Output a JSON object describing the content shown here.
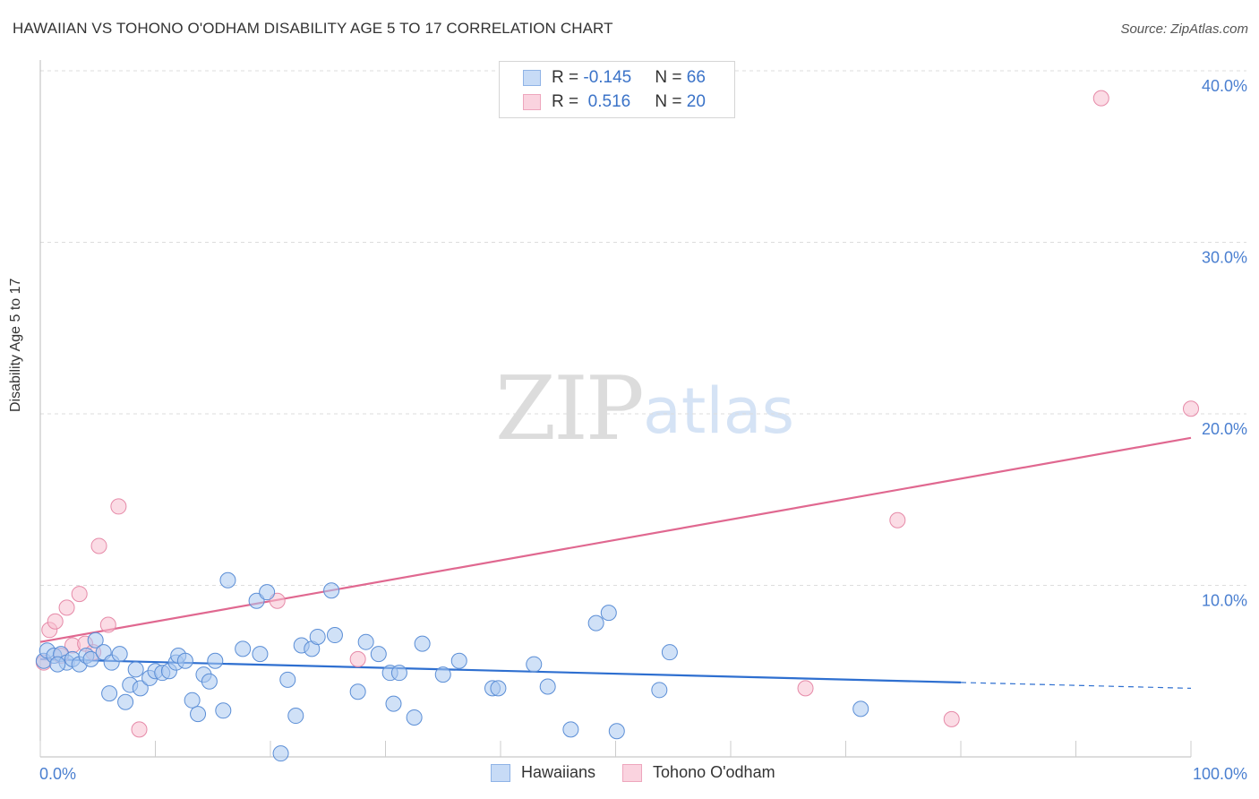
{
  "header": {
    "title": "HAWAIIAN VS TOHONO O'ODHAM DISABILITY AGE 5 TO 17 CORRELATION CHART",
    "source": "Source: ZipAtlas.com"
  },
  "watermark": {
    "zip": "ZIP",
    "atlas": "atlas"
  },
  "legend": {
    "rows": [
      {
        "r_label": "R = ",
        "r_value": "-0.145",
        "n_label": "N = ",
        "n_value": "66",
        "color": "#aac8f0"
      },
      {
        "r_label": "R = ",
        "r_value": " 0.516",
        "n_label": "N = ",
        "n_value": "20",
        "color": "#f5b8cb"
      }
    ]
  },
  "bottom_legend": {
    "series1": "Hawaiians",
    "series2": "Tohono O'odham"
  },
  "colors": {
    "blue_fill": "#aac8f0",
    "blue_stroke": "#5b8ed6",
    "blue_line": "#2e6fd0",
    "pink_fill": "#f7c0d0",
    "pink_stroke": "#e68aa8",
    "pink_line": "#e06890",
    "grid": "#dddddd",
    "tick_text": "#4a7fd0"
  },
  "chart_data": {
    "type": "scatter",
    "title": "HAWAIIAN VS TOHONO O'ODHAM DISABILITY AGE 5 TO 17 CORRELATION CHART",
    "xlabel": "",
    "ylabel": "Disability Age 5 to 17",
    "xlim": [
      0,
      100
    ],
    "ylim": [
      0,
      40
    ],
    "x_tick_labels": [
      "0.0%",
      "100.0%"
    ],
    "y_ticks": [
      10,
      20,
      30,
      40
    ],
    "y_tick_labels": [
      "10.0%",
      "20.0%",
      "30.0%",
      "40.0%"
    ],
    "series": [
      {
        "name": "Hawaiians",
        "R": -0.145,
        "N": 66,
        "trend": {
          "x0": 0,
          "y0": 5.7,
          "x1": 100,
          "y1": 4.0,
          "solid_until": 80
        },
        "points": [
          [
            0.3,
            5.6
          ],
          [
            0.6,
            6.2
          ],
          [
            1.2,
            5.9
          ],
          [
            1.8,
            6.0
          ],
          [
            2.3,
            5.5
          ],
          [
            2.8,
            5.7
          ],
          [
            3.4,
            5.4
          ],
          [
            4.0,
            5.9
          ],
          [
            4.4,
            5.7
          ],
          [
            4.8,
            6.8
          ],
          [
            5.5,
            6.1
          ],
          [
            6.2,
            5.5
          ],
          [
            6.0,
            3.7
          ],
          [
            6.9,
            6.0
          ],
          [
            7.4,
            3.2
          ],
          [
            7.8,
            4.2
          ],
          [
            8.3,
            5.1
          ],
          [
            8.7,
            4.0
          ],
          [
            9.5,
            4.6
          ],
          [
            10.0,
            5.0
          ],
          [
            10.6,
            4.9
          ],
          [
            11.2,
            5.0
          ],
          [
            11.8,
            5.5
          ],
          [
            12.0,
            5.9
          ],
          [
            12.6,
            5.6
          ],
          [
            13.2,
            3.3
          ],
          [
            13.7,
            2.5
          ],
          [
            14.2,
            4.8
          ],
          [
            14.7,
            4.4
          ],
          [
            15.2,
            5.6
          ],
          [
            15.9,
            2.7
          ],
          [
            16.3,
            10.3
          ],
          [
            17.6,
            6.3
          ],
          [
            18.8,
            9.1
          ],
          [
            19.1,
            6.0
          ],
          [
            19.7,
            9.6
          ],
          [
            20.9,
            0.2
          ],
          [
            21.5,
            4.5
          ],
          [
            22.2,
            2.4
          ],
          [
            22.7,
            6.5
          ],
          [
            23.6,
            6.3
          ],
          [
            24.1,
            7.0
          ],
          [
            25.3,
            9.7
          ],
          [
            25.6,
            7.1
          ],
          [
            27.6,
            3.8
          ],
          [
            28.3,
            6.7
          ],
          [
            29.4,
            6.0
          ],
          [
            30.4,
            4.9
          ],
          [
            30.7,
            3.1
          ],
          [
            31.2,
            4.9
          ],
          [
            32.5,
            2.3
          ],
          [
            33.2,
            6.6
          ],
          [
            35.0,
            4.8
          ],
          [
            36.4,
            5.6
          ],
          [
            39.3,
            4.0
          ],
          [
            39.8,
            4.0
          ],
          [
            42.9,
            5.4
          ],
          [
            44.1,
            4.1
          ],
          [
            46.1,
            1.6
          ],
          [
            48.3,
            7.8
          ],
          [
            49.4,
            8.4
          ],
          [
            50.1,
            1.5
          ],
          [
            53.8,
            3.9
          ],
          [
            54.7,
            6.1
          ],
          [
            71.3,
            2.8
          ],
          [
            1.5,
            5.4
          ]
        ]
      },
      {
        "name": "Tohono O'odham",
        "R": 0.516,
        "N": 20,
        "trend": {
          "x0": 0,
          "y0": 6.7,
          "x1": 100,
          "y1": 18.6
        },
        "points": [
          [
            0.3,
            5.5
          ],
          [
            0.8,
            7.4
          ],
          [
            1.3,
            7.9
          ],
          [
            1.8,
            5.9
          ],
          [
            2.3,
            8.7
          ],
          [
            2.8,
            6.5
          ],
          [
            3.4,
            9.5
          ],
          [
            3.9,
            6.6
          ],
          [
            4.6,
            6.1
          ],
          [
            5.1,
            12.3
          ],
          [
            5.9,
            7.7
          ],
          [
            6.8,
            14.6
          ],
          [
            8.6,
            1.6
          ],
          [
            20.6,
            9.1
          ],
          [
            27.6,
            5.7
          ],
          [
            66.5,
            4.0
          ],
          [
            74.5,
            13.8
          ],
          [
            79.2,
            2.2
          ],
          [
            92.2,
            38.4
          ],
          [
            100.0,
            20.3
          ]
        ]
      }
    ]
  }
}
